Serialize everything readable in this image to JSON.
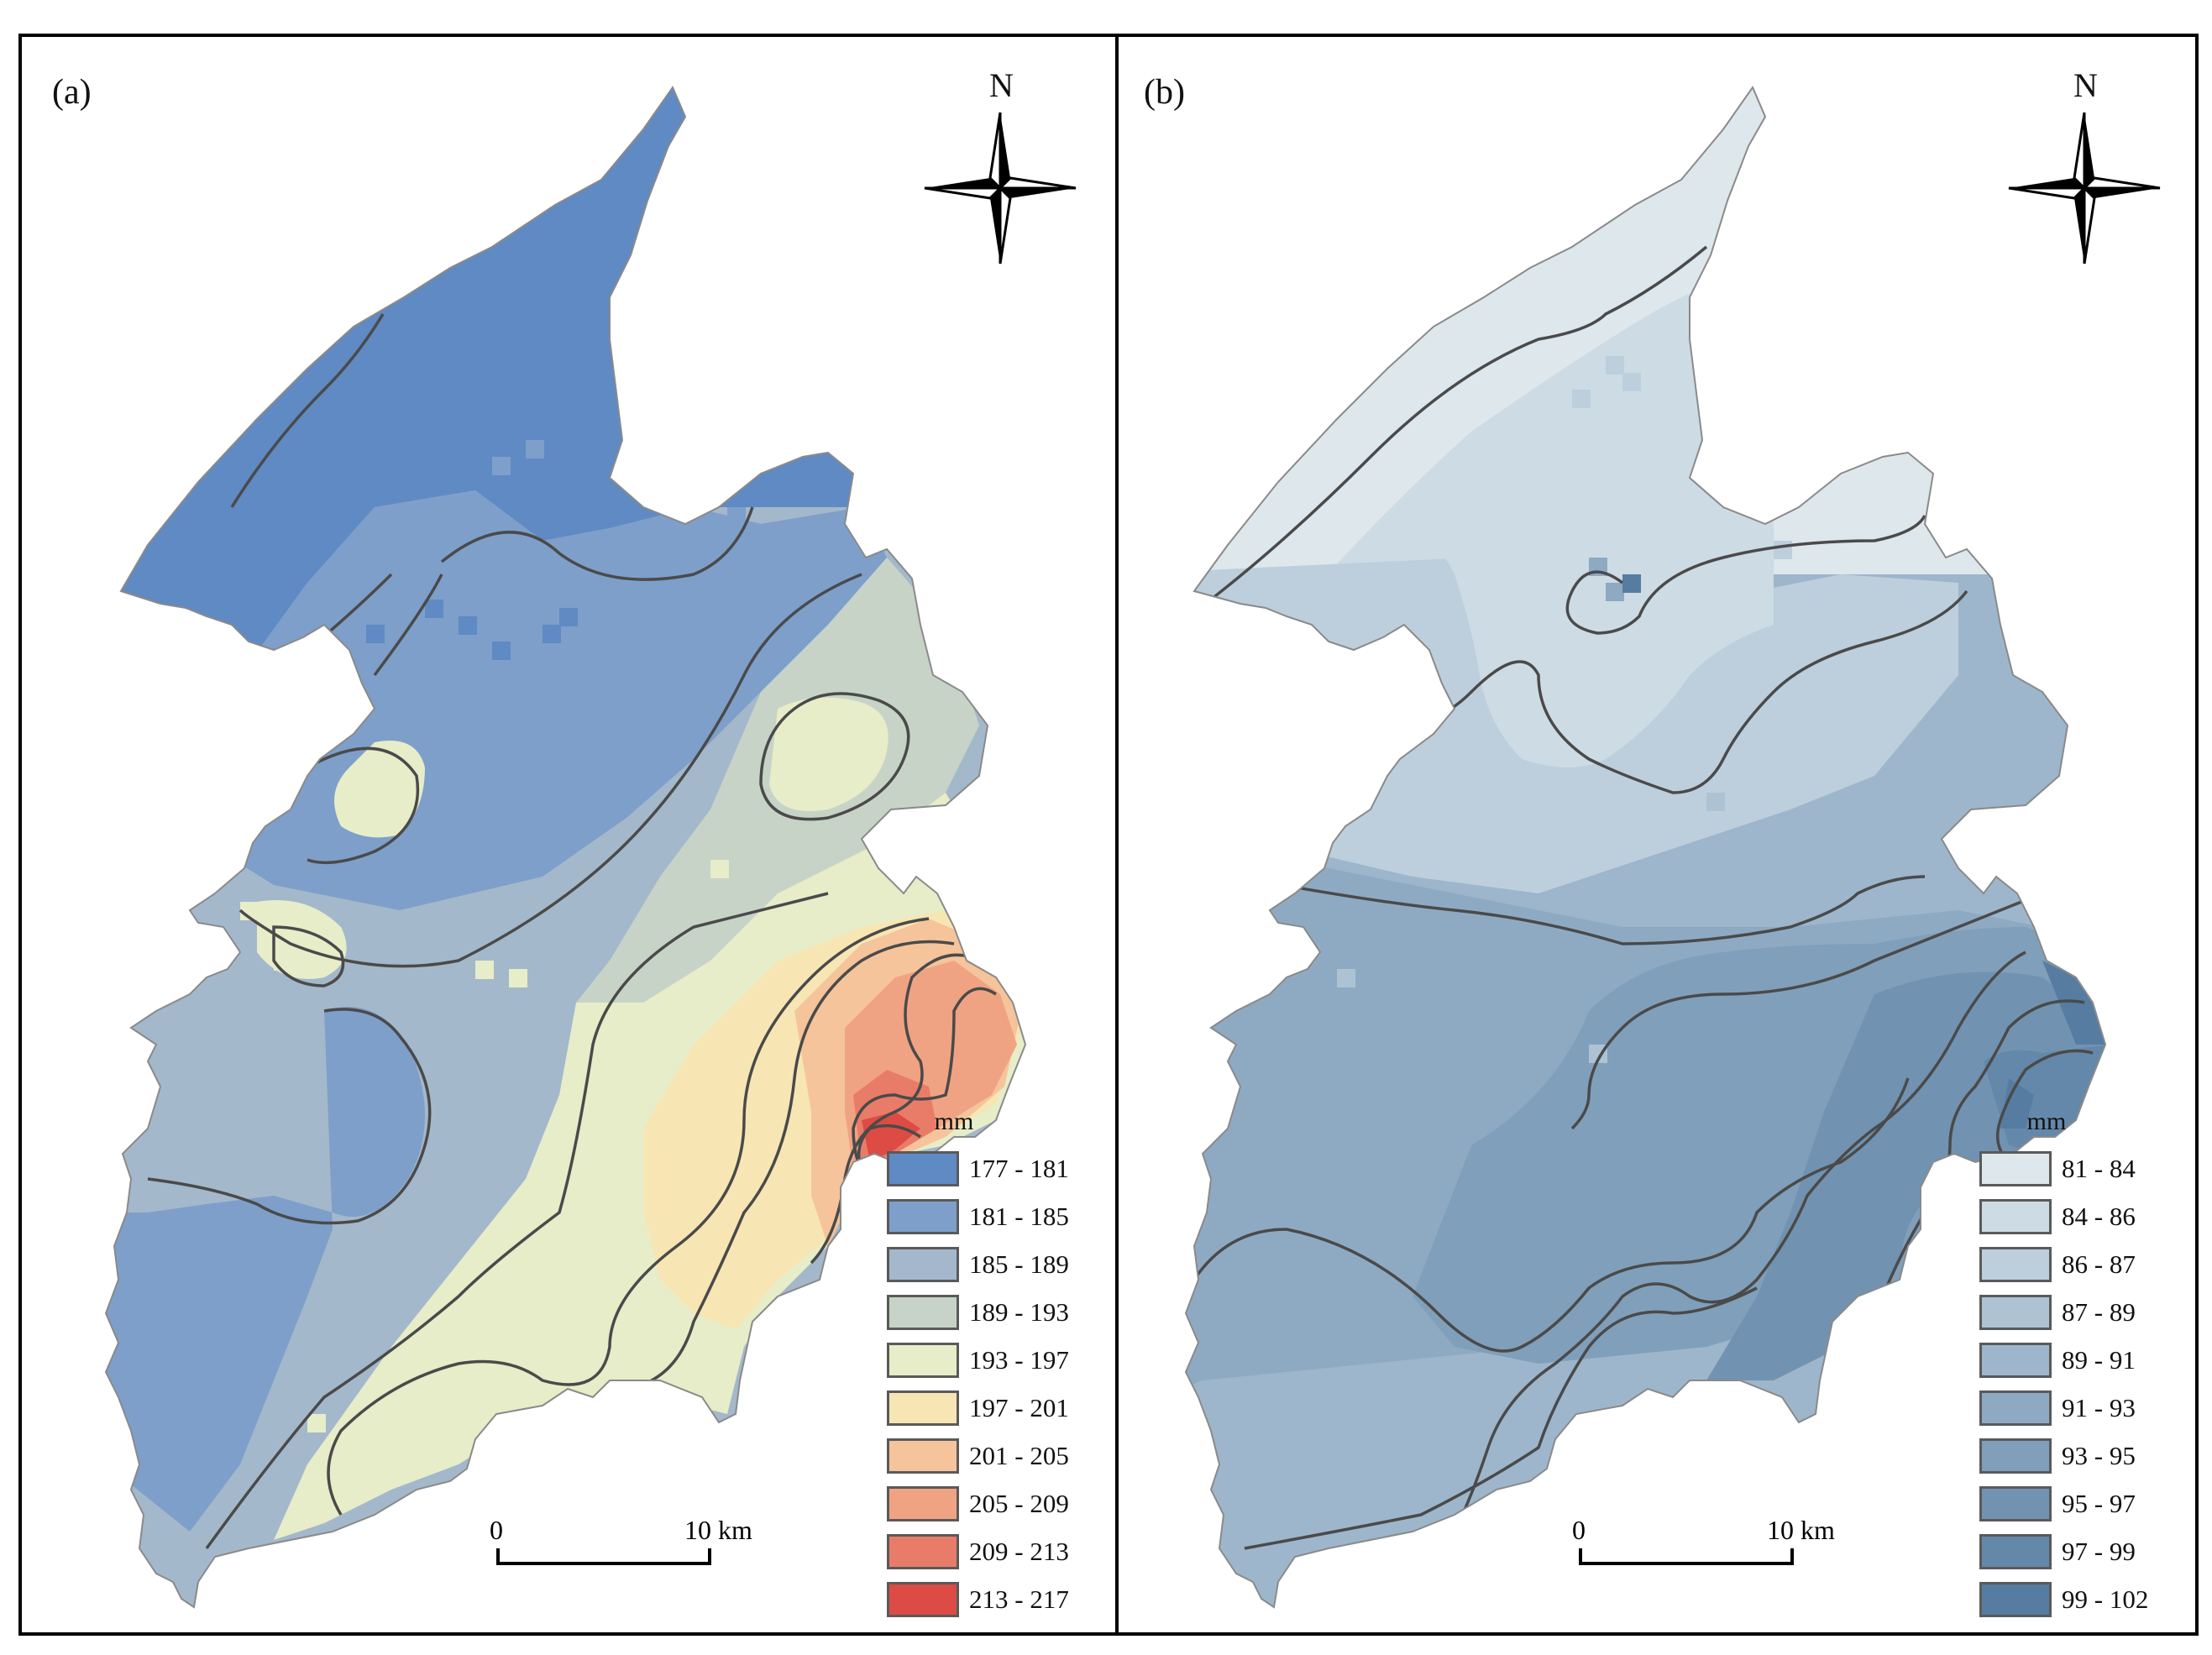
{
  "panels": [
    {
      "label": "(a)",
      "north": "N",
      "legend": {
        "unit": "mm",
        "classes": [
          {
            "label": "177 - 181",
            "color": "#5f8ac4"
          },
          {
            "label": "181 - 185",
            "color": "#7e9fca"
          },
          {
            "label": "185 - 189",
            "color": "#a4b8cb"
          },
          {
            "label": "189 - 193",
            "color": "#c8d3c8"
          },
          {
            "label": "193 - 197",
            "color": "#e6edc8"
          },
          {
            "label": "197 - 201",
            "color": "#f7e6b4"
          },
          {
            "label": "201 - 205",
            "color": "#f5c49b"
          },
          {
            "label": "205 - 209",
            "color": "#f0a383"
          },
          {
            "label": "209 - 213",
            "color": "#e97c68"
          },
          {
            "label": "213 - 217",
            "color": "#dd4b45"
          }
        ]
      },
      "scale": {
        "start": "0",
        "end": "10 km"
      }
    },
    {
      "label": "(b)",
      "north": "N",
      "legend": {
        "unit": "mm",
        "classes": [
          {
            "label": "81 - 84",
            "color": "#dde7ec"
          },
          {
            "label": "84 - 86",
            "color": "#cddbe4"
          },
          {
            "label": "86 - 87",
            "color": "#bdcfdc"
          },
          {
            "label": "87 - 89",
            "color": "#adc3d4"
          },
          {
            "label": "89 - 91",
            "color": "#9db6cb"
          },
          {
            "label": "91 - 93",
            "color": "#8eaac3"
          },
          {
            "label": "93 - 95",
            "color": "#809fba"
          },
          {
            "label": "95 - 97",
            "color": "#7193b1"
          },
          {
            "label": "97 - 99",
            "color": "#6488a9"
          },
          {
            "label": "99 - 102",
            "color": "#567ca1"
          }
        ]
      },
      "scale": {
        "start": "0",
        "end": "10 km"
      }
    }
  ]
}
